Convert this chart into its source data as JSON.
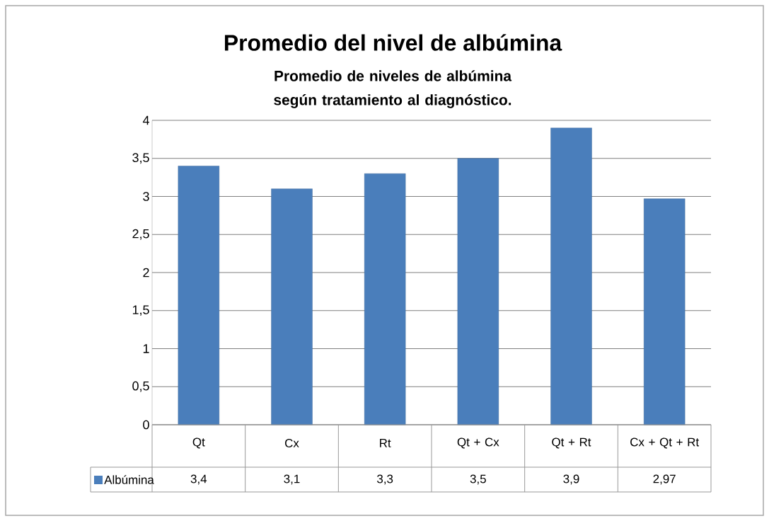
{
  "chart_data": {
    "type": "bar",
    "title": "Promedio del nivel de albúmina",
    "subtitle": "Promedio de niveles de albúmina según tratamiento al diagnóstico.",
    "categories": [
      "Qt",
      "Cx",
      "Rt",
      "Qt + Cx",
      "Qt + Rt",
      "Cx + Qt + Rt"
    ],
    "series": [
      {
        "name": "Albúmina",
        "color": "#4a7ebb",
        "values": [
          3.4,
          3.1,
          3.3,
          3.5,
          3.9,
          2.97
        ],
        "value_labels": [
          "3,4",
          "3,1",
          "3,3",
          "3,5",
          "3,9",
          "2,97"
        ]
      }
    ],
    "ylim": [
      0,
      4
    ],
    "yticks": [
      0,
      {
        "value": 0.5,
        "label": "0,5"
      },
      1,
      {
        "value": 1.5,
        "label": "1,5"
      },
      2,
      {
        "value": 2.5,
        "label": "2,5"
      },
      3,
      {
        "value": 3.5,
        "label": "3,5"
      },
      4
    ],
    "grid": "y",
    "legend": "bottom"
  }
}
